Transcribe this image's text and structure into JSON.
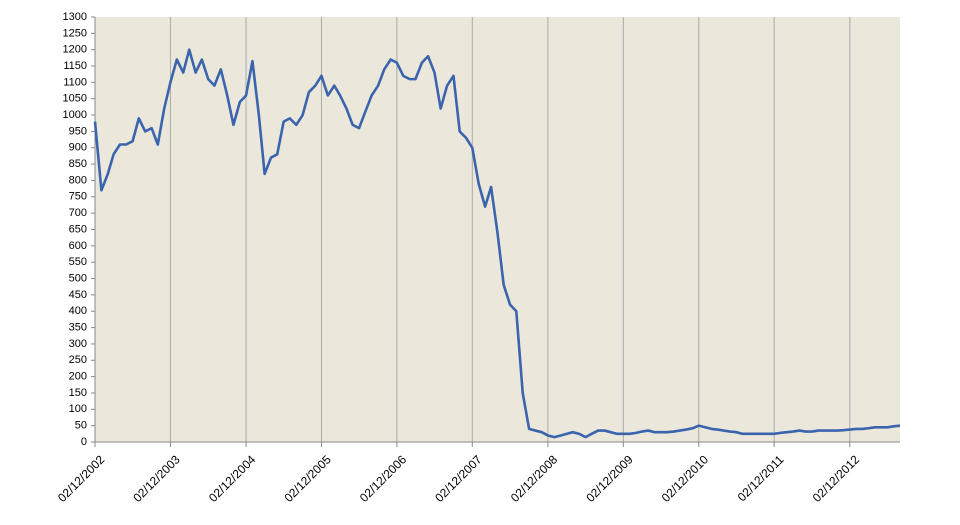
{
  "chart_data": {
    "type": "line",
    "xlim": [
      "02/12/2002",
      "02/08/2013"
    ],
    "xticks": [
      "02/12/2002",
      "02/12/2003",
      "02/12/2004",
      "02/12/2005",
      "02/12/2006",
      "02/12/2007",
      "02/12/2008",
      "02/12/2009",
      "02/12/2010",
      "02/12/2011",
      "02/12/2012"
    ],
    "ylim": [
      0,
      1300
    ],
    "yticks": [
      0,
      50,
      100,
      150,
      200,
      250,
      300,
      350,
      400,
      450,
      500,
      550,
      600,
      650,
      700,
      750,
      800,
      850,
      900,
      950,
      1000,
      1050,
      1100,
      1150,
      1200,
      1250,
      1300
    ],
    "grid": true,
    "background": "#ebe8db",
    "x": [
      "02/12/2002",
      "02/01/2003",
      "02/02/2003",
      "02/03/2003",
      "02/04/2003",
      "02/05/2003",
      "02/06/2003",
      "02/07/2003",
      "02/08/2003",
      "02/09/2003",
      "02/10/2003",
      "02/11/2003",
      "02/12/2003",
      "02/01/2004",
      "02/02/2004",
      "02/03/2004",
      "02/04/2004",
      "02/05/2004",
      "02/06/2004",
      "02/07/2004",
      "02/08/2004",
      "02/09/2004",
      "02/10/2004",
      "02/11/2004",
      "02/12/2004",
      "02/01/2005",
      "02/02/2005",
      "02/03/2005",
      "02/04/2005",
      "02/05/2005",
      "02/06/2005",
      "02/07/2005",
      "02/08/2005",
      "02/09/2005",
      "02/10/2005",
      "02/11/2005",
      "02/12/2005",
      "02/01/2006",
      "02/02/2006",
      "02/03/2006",
      "02/04/2006",
      "02/05/2006",
      "02/06/2006",
      "02/07/2006",
      "02/08/2006",
      "02/09/2006",
      "02/10/2006",
      "02/11/2006",
      "02/12/2006",
      "02/01/2007",
      "02/02/2007",
      "02/03/2007",
      "02/04/2007",
      "02/05/2007",
      "02/06/2007",
      "02/07/2007",
      "02/08/2007",
      "02/09/2007",
      "02/10/2007",
      "02/11/2007",
      "02/12/2007",
      "02/01/2008",
      "02/02/2008",
      "02/03/2008",
      "02/04/2008",
      "02/05/2008",
      "02/06/2008",
      "02/07/2008",
      "02/08/2008",
      "02/09/2008",
      "02/10/2008",
      "02/11/2008",
      "02/12/2008",
      "02/01/2009",
      "02/02/2009",
      "02/03/2009",
      "02/04/2009",
      "02/05/2009",
      "02/06/2009",
      "02/07/2009",
      "02/08/2009",
      "02/09/2009",
      "02/10/2009",
      "02/11/2009",
      "02/12/2009",
      "02/01/2010",
      "02/02/2010",
      "02/03/2010",
      "02/04/2010",
      "02/05/2010",
      "02/06/2010",
      "02/07/2010",
      "02/08/2010",
      "02/09/2010",
      "02/10/2010",
      "02/11/2010",
      "02/12/2010",
      "02/01/2011",
      "02/02/2011",
      "02/03/2011",
      "02/04/2011",
      "02/05/2011",
      "02/06/2011",
      "02/07/2011",
      "02/08/2011",
      "02/09/2011",
      "02/10/2011",
      "02/11/2011",
      "02/12/2011",
      "02/01/2012",
      "02/02/2012",
      "02/03/2012",
      "02/04/2012",
      "02/05/2012",
      "02/06/2012",
      "02/07/2012",
      "02/08/2012",
      "02/09/2012",
      "02/10/2012",
      "02/11/2012",
      "02/12/2012",
      "02/01/2013",
      "02/02/2013",
      "02/03/2013",
      "02/04/2013",
      "02/05/2013",
      "02/06/2013",
      "02/07/2013",
      "02/08/2013"
    ],
    "series": [
      {
        "color": "#3a64ad",
        "values": [
          980,
          770,
          820,
          880,
          910,
          910,
          920,
          990,
          950,
          960,
          910,
          1020,
          1100,
          1170,
          1130,
          1200,
          1130,
          1170,
          1110,
          1090,
          1140,
          1060,
          970,
          1040,
          1060,
          1165,
          1000,
          820,
          870,
          880,
          980,
          990,
          970,
          1000,
          1070,
          1090,
          1120,
          1060,
          1090,
          1060,
          1020,
          970,
          960,
          1010,
          1060,
          1090,
          1140,
          1170,
          1160,
          1120,
          1110,
          1110,
          1160,
          1180,
          1130,
          1020,
          1090,
          1120,
          950,
          930,
          900,
          790,
          720,
          780,
          640,
          480,
          420,
          400,
          150,
          40,
          35,
          30,
          20,
          15,
          20,
          25,
          30,
          25,
          15,
          25,
          35,
          35,
          30,
          25,
          25,
          25,
          28,
          32,
          35,
          30,
          30,
          30,
          32,
          35,
          38,
          42,
          50,
          45,
          40,
          38,
          35,
          32,
          30,
          25,
          25,
          25,
          25,
          25,
          25,
          28,
          30,
          32,
          35,
          32,
          32,
          35,
          35,
          35,
          35,
          36,
          38,
          40,
          40,
          42,
          45,
          45,
          45,
          48,
          50
        ]
      }
    ]
  }
}
